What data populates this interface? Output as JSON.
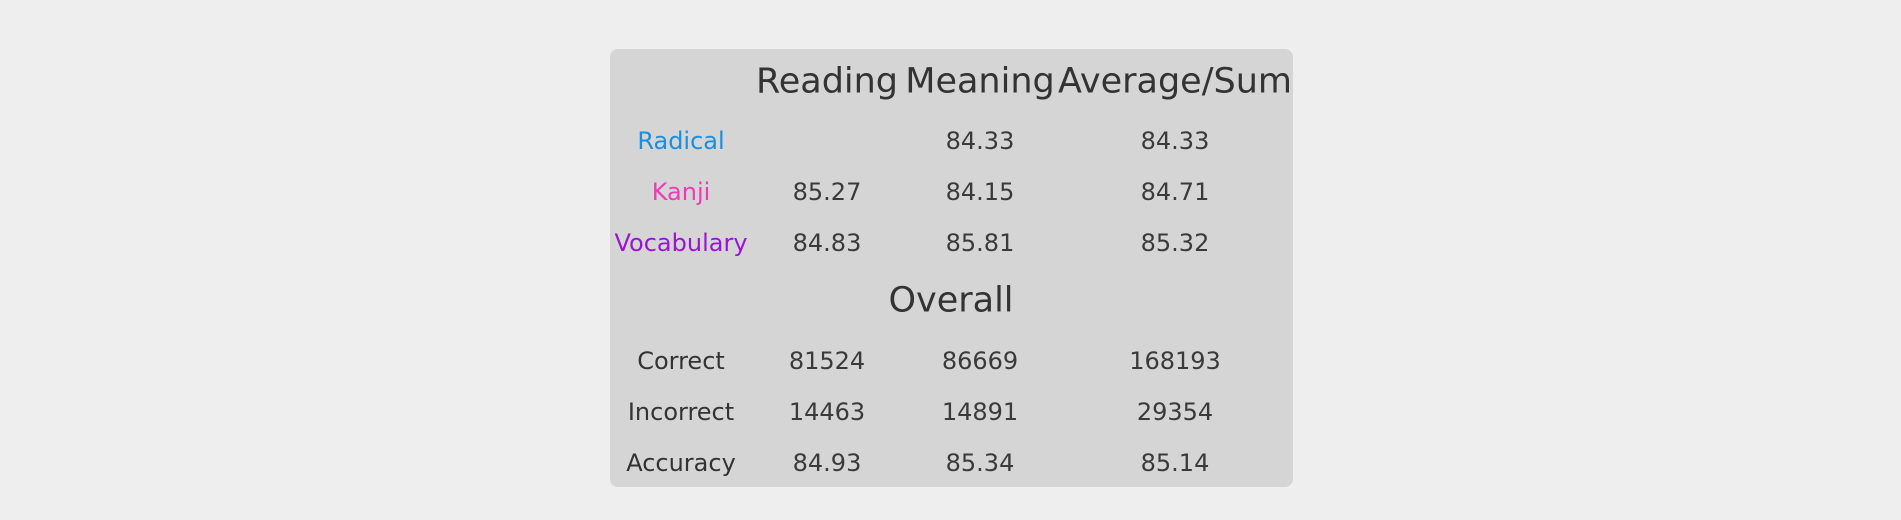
{
  "colors": {
    "page_background": "#eeeeee",
    "panel_background": "#d5d5d5",
    "text": "#333333",
    "radical": "#1a8fe0",
    "kanji": "#f03ab7",
    "vocabulary": "#9b14d6"
  },
  "headers": {
    "reading": "Reading",
    "meaning": "Meaning",
    "average_sum": "Average/Sum"
  },
  "item_types": [
    {
      "label": "Radical",
      "color": "#1a8fe0",
      "reading": "",
      "meaning": "84.33",
      "average": "84.33"
    },
    {
      "label": "Kanji",
      "color": "#f03ab7",
      "reading": "85.27",
      "meaning": "84.15",
      "average": "84.71"
    },
    {
      "label": "Vocabulary",
      "color": "#9b14d6",
      "reading": "84.83",
      "meaning": "85.81",
      "average": "85.32"
    }
  ],
  "overall": {
    "title": "Overall",
    "rows": [
      {
        "label": "Correct",
        "reading": "81524",
        "meaning": "86669",
        "sum": "168193"
      },
      {
        "label": "Incorrect",
        "reading": "14463",
        "meaning": "14891",
        "sum": "29354"
      },
      {
        "label": "Accuracy",
        "reading": "84.93",
        "meaning": "85.34",
        "sum": "85.14"
      }
    ]
  }
}
